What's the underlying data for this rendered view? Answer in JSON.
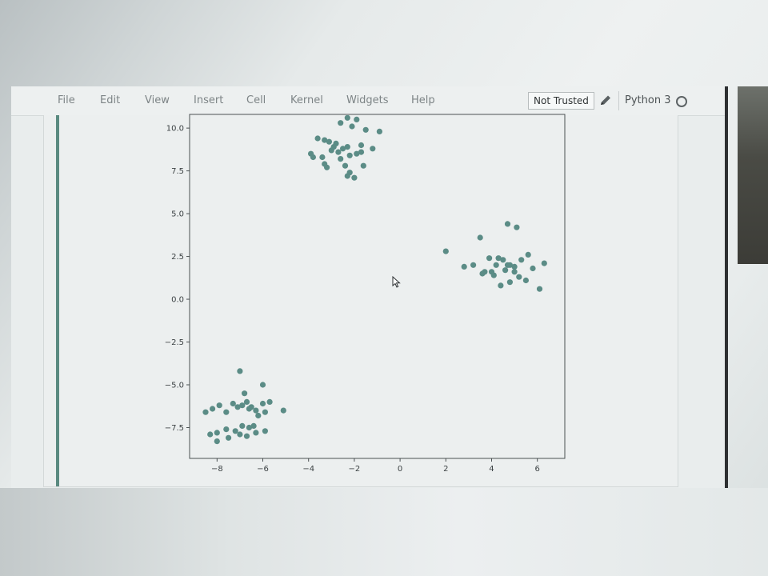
{
  "menubar": {
    "items": [
      "File",
      "Edit",
      "View",
      "Insert",
      "Cell",
      "Kernel",
      "Widgets",
      "Help"
    ],
    "trust_label": "Not Trusted",
    "kernel_name": "Python 3",
    "edit_icon": "pencil-icon",
    "kernel_status_icon": "kernel-idle-circle-icon"
  },
  "colors": {
    "point": "#5b8c86",
    "axes": "#4a5052",
    "cell_marker": "#5a8a80"
  },
  "chart_data": {
    "type": "scatter",
    "title": "",
    "xlabel": "",
    "ylabel": "",
    "xlim": [
      -9.2,
      7.2
    ],
    "ylim": [
      -9.3,
      10.8
    ],
    "grid": false,
    "x_ticks": [
      {
        "value": -8,
        "label": "−8"
      },
      {
        "value": -6,
        "label": "−6"
      },
      {
        "value": -4,
        "label": "−4"
      },
      {
        "value": -2,
        "label": "−2"
      },
      {
        "value": 0,
        "label": "0"
      },
      {
        "value": 2,
        "label": "2"
      },
      {
        "value": 4,
        "label": "4"
      },
      {
        "value": 6,
        "label": "6"
      }
    ],
    "y_ticks": [
      {
        "value": 10.0,
        "label": "10.0"
      },
      {
        "value": 7.5,
        "label": "7.5"
      },
      {
        "value": 5.0,
        "label": "5.0"
      },
      {
        "value": 2.5,
        "label": "2.5"
      },
      {
        "value": 0.0,
        "label": "0.0"
      },
      {
        "value": -2.5,
        "label": "−2.5"
      },
      {
        "value": -5.0,
        "label": "−5.0"
      },
      {
        "value": -7.5,
        "label": "−7.5"
      }
    ],
    "series": [
      {
        "x": [
          -2.3,
          -1.9,
          -2.6,
          -2.1,
          -1.5,
          -0.9,
          -3.6,
          -3.3,
          -3.1,
          -2.8,
          -2.9,
          -2.5,
          -2.3,
          -1.7,
          -1.2,
          -3.9,
          -3.4,
          -2.7,
          -2.2,
          -1.9,
          -1.7,
          -3.8,
          -3.3,
          -3.2,
          -2.4,
          -1.6,
          -2.2,
          -2.3,
          -2.0,
          -3.0,
          -2.6
        ],
        "y": [
          10.6,
          10.5,
          10.3,
          10.1,
          9.9,
          9.8,
          9.4,
          9.3,
          9.2,
          9.1,
          8.9,
          8.8,
          8.9,
          9.0,
          8.8,
          8.5,
          8.3,
          8.6,
          8.4,
          8.5,
          8.6,
          8.3,
          7.9,
          7.7,
          7.8,
          7.8,
          7.4,
          7.2,
          7.1,
          8.7,
          8.2
        ]
      },
      {
        "x": [
          2.0,
          2.8,
          3.2,
          3.6,
          3.7,
          4.0,
          4.2,
          4.5,
          4.7,
          5.0,
          5.3,
          5.6,
          5.8,
          6.3,
          3.9,
          4.3,
          4.8,
          5.2,
          4.1,
          4.6,
          5.0,
          5.5,
          6.1,
          4.4,
          4.8,
          3.5,
          5.1,
          4.7
        ],
        "y": [
          2.8,
          1.9,
          2.0,
          1.5,
          1.6,
          1.6,
          2.0,
          2.3,
          2.0,
          1.9,
          2.3,
          2.6,
          1.8,
          2.1,
          2.4,
          2.4,
          2.0,
          1.3,
          1.4,
          1.7,
          1.6,
          1.1,
          0.6,
          0.8,
          1.0,
          3.6,
          4.2,
          4.4
        ]
      },
      {
        "x": [
          -8.5,
          -8.2,
          -7.9,
          -7.6,
          -7.3,
          -7.1,
          -6.9,
          -6.7,
          -6.5,
          -6.3,
          -6.0,
          -5.9,
          -5.7,
          -5.1,
          -8.0,
          -7.6,
          -7.2,
          -6.9,
          -6.6,
          -6.3,
          -8.3,
          -8.0,
          -7.5,
          -7.0,
          -6.7,
          -6.4,
          -5.9,
          -7.0,
          -6.0,
          -6.8,
          -6.6,
          -6.2
        ],
        "y": [
          -6.6,
          -6.4,
          -6.2,
          -6.6,
          -6.1,
          -6.3,
          -6.2,
          -6.0,
          -6.3,
          -6.5,
          -6.1,
          -6.6,
          -6.0,
          -6.5,
          -7.8,
          -7.6,
          -7.7,
          -7.4,
          -7.5,
          -7.8,
          -7.9,
          -8.3,
          -8.1,
          -7.9,
          -8.0,
          -7.4,
          -7.7,
          -4.2,
          -5.0,
          -5.5,
          -6.4,
          -6.8
        ]
      }
    ]
  }
}
